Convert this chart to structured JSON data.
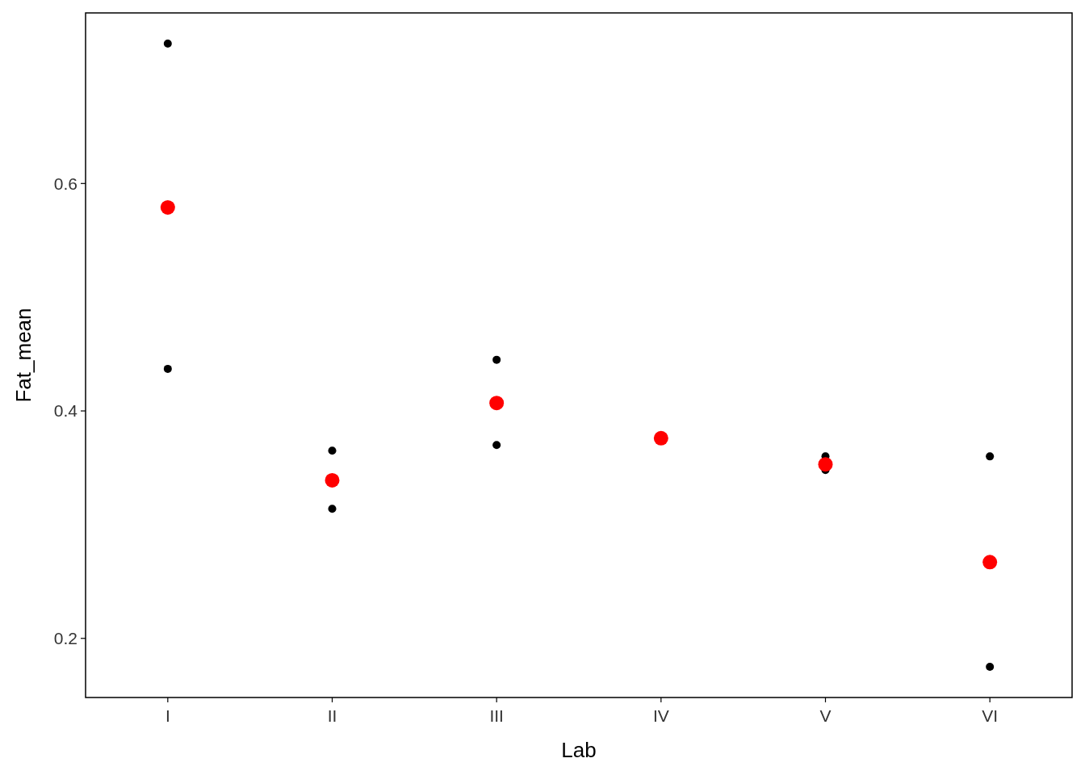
{
  "chart_data": {
    "type": "scatter",
    "xlabel": "Lab",
    "ylabel": "Fat_mean",
    "categories": [
      "I",
      "II",
      "III",
      "IV",
      "V",
      "VI"
    ],
    "ylim": [
      0.148,
      0.75
    ],
    "yticks": [
      0.2,
      0.4,
      0.6
    ],
    "marker": "circle",
    "series": [
      {
        "color": "#000000",
        "x": [
          "I",
          "I",
          "II",
          "II",
          "III",
          "III",
          "V",
          "V",
          "VI",
          "VI"
        ],
        "values": [
          0.723,
          0.437,
          0.365,
          0.314,
          0.445,
          0.37,
          0.36,
          0.348,
          0.36,
          0.175
        ]
      },
      {
        "color": "#ff0000",
        "x": [
          "I",
          "II",
          "III",
          "IV",
          "V",
          "VI"
        ],
        "values": [
          0.579,
          0.339,
          0.407,
          0.376,
          0.353,
          0.267
        ]
      }
    ]
  }
}
